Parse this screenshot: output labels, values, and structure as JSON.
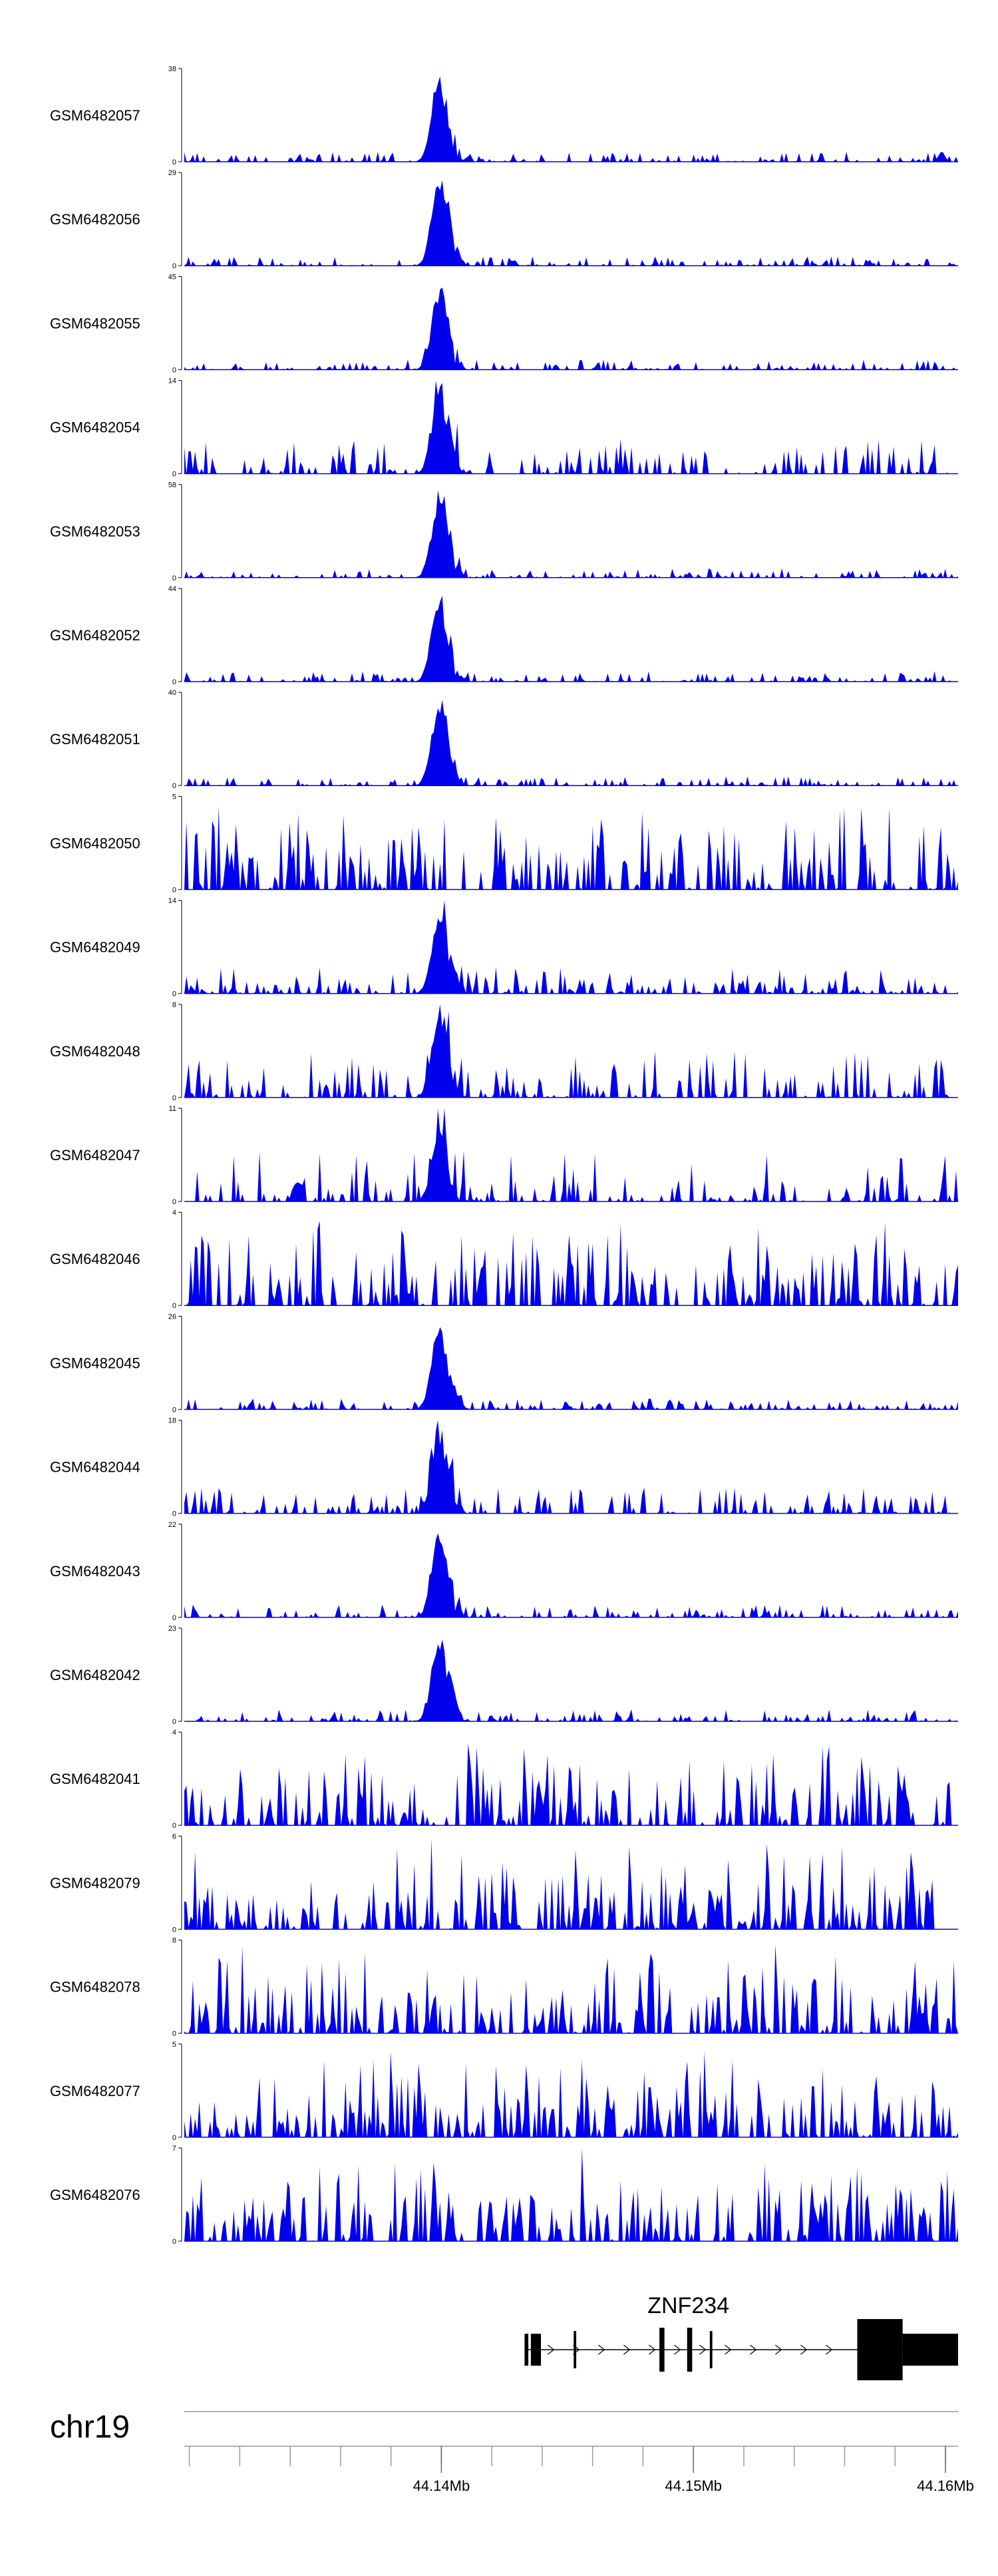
{
  "chart_data": {
    "type": "area",
    "chromosome": "chr19",
    "x_range_mb": [
      44.1298,
      44.1605
    ],
    "x_ticks": [
      "44.14Mb",
      "44.15Mb",
      "44.16Mb"
    ],
    "x_tick_values": [
      44.14,
      44.15,
      44.16
    ],
    "fill_color": "#0000ee",
    "tracks": [
      {
        "name": "GSM6482057",
        "ymax": 38,
        "ymin_label": "0",
        "ymax_label": "38",
        "profile": "peak",
        "peak": 34,
        "bg": 4
      },
      {
        "name": "GSM6482056",
        "ymax": 29,
        "ymin_label": "0",
        "ymax_label": "29",
        "profile": "peak",
        "peak": 27,
        "bg": 3
      },
      {
        "name": "GSM6482055",
        "ymax": 45,
        "ymin_label": "0",
        "ymax_label": "45",
        "profile": "peak",
        "peak": 41,
        "bg": 5
      },
      {
        "name": "GSM6482054",
        "ymax": 14,
        "ymin_label": "0",
        "ymax_label": "14",
        "profile": "peak",
        "peak": 13,
        "bg": 6
      },
      {
        "name": "GSM6482053",
        "ymax": 58,
        "ymin_label": "0",
        "ymax_label": "58",
        "profile": "peak",
        "peak": 53,
        "bg": 6
      },
      {
        "name": "GSM6482052",
        "ymax": 44,
        "ymin_label": "0",
        "ymax_label": "44",
        "profile": "peak",
        "peak": 40,
        "bg": 5
      },
      {
        "name": "GSM6482051",
        "ymax": 40,
        "ymin_label": "0",
        "ymax_label": "40",
        "profile": "peak",
        "peak": 37,
        "bg": 4
      },
      {
        "name": "GSM6482050",
        "ymax": 5,
        "ymin_label": "0",
        "ymax_label": "5",
        "profile": "noise",
        "peak": 0,
        "bg": 4
      },
      {
        "name": "GSM6482049",
        "ymax": 14,
        "ymin_label": "0",
        "ymax_label": "14",
        "profile": "peak",
        "peak": 13,
        "bg": 4
      },
      {
        "name": "GSM6482048",
        "ymax": 8,
        "ymin_label": "0",
        "ymax_label": "8",
        "profile": "peak",
        "peak": 7,
        "bg": 4
      },
      {
        "name": "GSM6482047",
        "ymax": 11,
        "ymin_label": "0",
        "ymax_label": "11",
        "profile": "peak",
        "peak": 9,
        "bg": 6
      },
      {
        "name": "GSM6482046",
        "ymax": 4,
        "ymin_label": "0",
        "ymax_label": "4",
        "profile": "noise",
        "peak": 0,
        "bg": 3
      },
      {
        "name": "GSM6482045",
        "ymax": 26,
        "ymin_label": "0",
        "ymax_label": "26",
        "profile": "peak",
        "peak": 24,
        "bg": 3
      },
      {
        "name": "GSM6482044",
        "ymax": 18,
        "ymin_label": "0",
        "ymax_label": "18",
        "profile": "peak",
        "peak": 17,
        "bg": 5
      },
      {
        "name": "GSM6482043",
        "ymax": 22,
        "ymin_label": "0",
        "ymax_label": "22",
        "profile": "peak",
        "peak": 20,
        "bg": 3
      },
      {
        "name": "GSM6482042",
        "ymax": 23,
        "ymin_label": "0",
        "ymax_label": "23",
        "profile": "peak",
        "peak": 21,
        "bg": 3
      },
      {
        "name": "GSM6482041",
        "ymax": 4,
        "ymin_label": "0",
        "ymax_label": "4",
        "profile": "noise",
        "peak": 0,
        "bg": 3
      },
      {
        "name": "GSM6482079",
        "ymax": 6,
        "ymin_label": "0",
        "ymax_label": "6",
        "profile": "noise",
        "peak": 0,
        "bg": 4
      },
      {
        "name": "GSM6482078",
        "ymax": 8,
        "ymin_label": "0",
        "ymax_label": "8",
        "profile": "noise",
        "peak": 0,
        "bg": 4
      },
      {
        "name": "GSM6482077",
        "ymax": 5,
        "ymin_label": "0",
        "ymax_label": "5",
        "profile": "noise",
        "peak": 0,
        "bg": 4
      },
      {
        "name": "GSM6482076",
        "ymax": 7,
        "ymin_label": "0",
        "ymax_label": "7",
        "profile": "noise",
        "peak": 0,
        "bg": 5
      }
    ],
    "peak_center_mb": 44.1399,
    "gene": {
      "name": "ZNF234",
      "strand": "+",
      "span_mb": [
        44.1433,
        44.1605
      ],
      "exons_mb": [
        [
          44.1433,
          44.14345
        ],
        [
          44.14355,
          44.14395
        ],
        [
          44.14525,
          44.14535
        ],
        [
          44.14865,
          44.14885
        ],
        [
          44.14975,
          44.14995
        ],
        [
          44.15065,
          44.15075
        ],
        [
          44.1565,
          44.1583
        ],
        [
          44.1583,
          44.1605
        ]
      ]
    }
  }
}
